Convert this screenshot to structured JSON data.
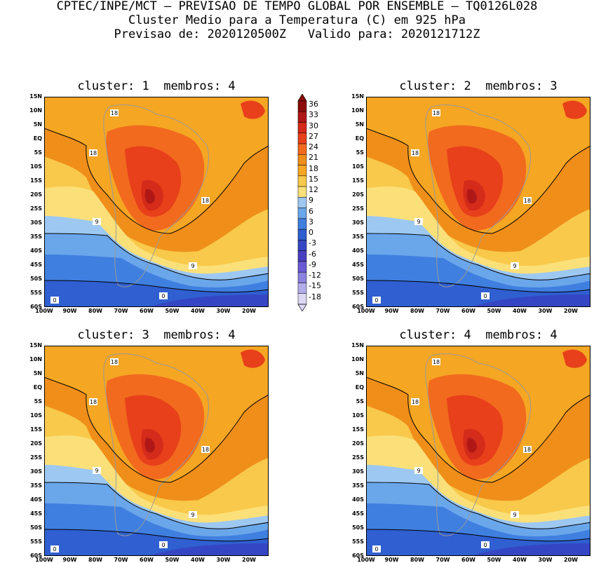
{
  "header": {
    "line1": "CPTEC/INPE/MCT – PREVISAO DE TEMPO GLOBAL POR ENSEMBLE – TQ0126L028",
    "line2": "Cluster Medio para a Temperatura (C) em 925 hPa",
    "line3": "Previsao de: 2020120500Z   Valido para: 2020121712Z"
  },
  "panels": [
    {
      "title": "cluster: 1  membros: 4"
    },
    {
      "title": "cluster: 2  membros: 3"
    },
    {
      "title": "cluster: 3  membros: 4"
    },
    {
      "title": "cluster: 4  membros: 4"
    }
  ],
  "axes": {
    "y_ticks": [
      "15N",
      "10N",
      "5N",
      "EQ",
      "5S",
      "10S",
      "15S",
      "20S",
      "25S",
      "30S",
      "35S",
      "40S",
      "45S",
      "50S",
      "55S",
      "60S"
    ],
    "x_ticks": [
      "100W",
      "90W",
      "80W",
      "70W",
      "60W",
      "50W",
      "40W",
      "30W",
      "20W"
    ]
  },
  "contour_labels": [
    "18",
    "18",
    "18",
    "9",
    "9",
    "0",
    "0"
  ],
  "colorbar": {
    "levels": [
      "36",
      "33",
      "30",
      "27",
      "24",
      "21",
      "18",
      "15",
      "12",
      "9",
      "6",
      "3",
      "0",
      "-3",
      "-6",
      "-9",
      "-12",
      "-15",
      "-18"
    ],
    "colors": [
      "#8b0b0b",
      "#b01818",
      "#d42b1a",
      "#e8401b",
      "#f26a1e",
      "#f08e1a",
      "#f5a623",
      "#f8c94a",
      "#fbe07a",
      "#9dc8f2",
      "#6aa6ea",
      "#3f7fe0",
      "#2f5fd0",
      "#3546c4",
      "#4a3fc0",
      "#6a5ad6",
      "#8c82e0",
      "#b3adea",
      "#dcd8f4"
    ]
  }
}
